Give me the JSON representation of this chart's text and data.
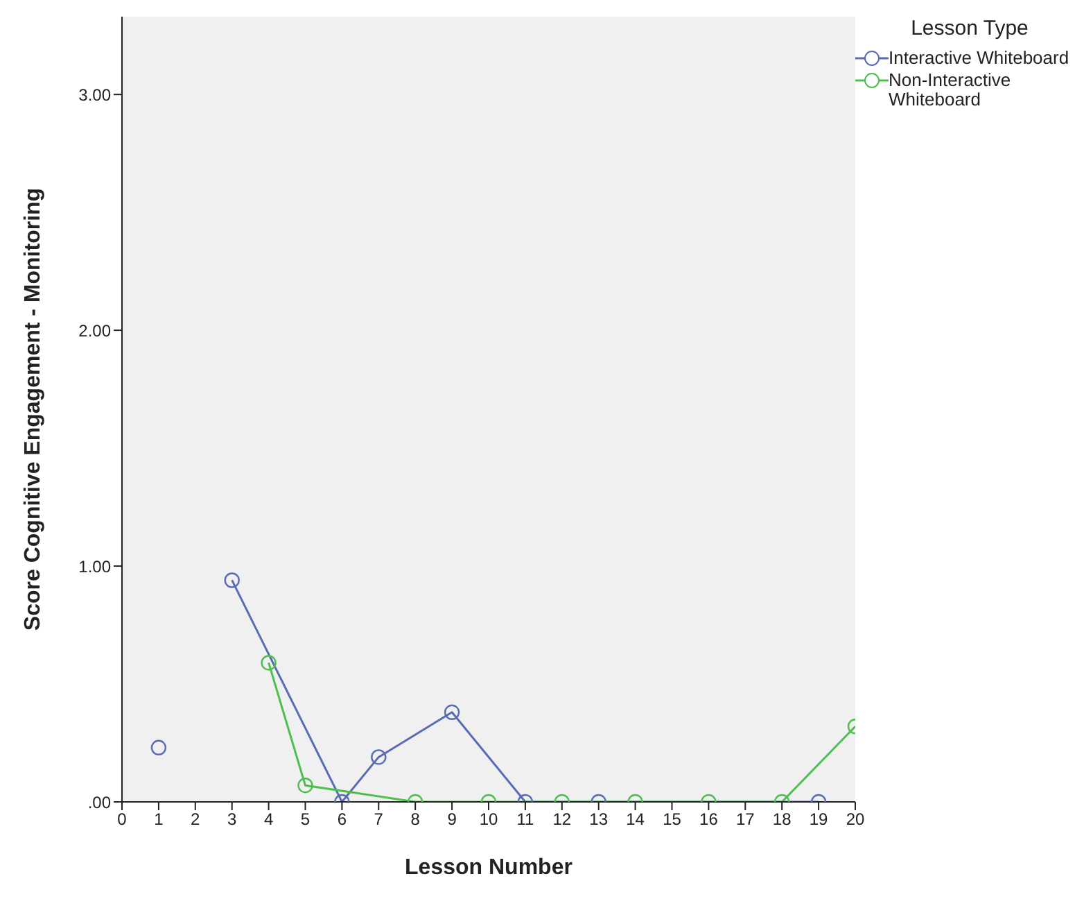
{
  "chart_data": {
    "type": "line",
    "xlabel": "Lesson Number",
    "ylabel": "Score Cognitive Engagement - Monitoring",
    "legend_title": "Lesson Type",
    "legend": "top right",
    "marker": "circle",
    "grid": false,
    "xlim": [
      0,
      20
    ],
    "xticks": [
      0,
      1,
      2,
      3,
      4,
      5,
      6,
      7,
      8,
      9,
      10,
      11,
      12,
      13,
      14,
      15,
      16,
      17,
      18,
      19,
      20
    ],
    "ylim": [
      0,
      3.33
    ],
    "yticks": [
      {
        "value": 0,
        "label": ".00"
      },
      {
        "value": 1,
        "label": "1.00"
      },
      {
        "value": 2,
        "label": "2.00"
      },
      {
        "value": 3,
        "label": "3.00"
      }
    ],
    "series": [
      {
        "name": "Interactive Whiteboard",
        "color": "#5a6bb5",
        "x": [
          1,
          2,
          3,
          6,
          7,
          9,
          11,
          13,
          19
        ],
        "values": [
          0.23,
          null,
          0.94,
          0,
          0.19,
          0.38,
          0,
          0,
          0
        ]
      },
      {
        "name": "Non-Interactive Whiteboard",
        "color": "#4cbf4c",
        "x": [
          4,
          5,
          8,
          10,
          12,
          14,
          16,
          18,
          20
        ],
        "values": [
          0.59,
          0.07,
          0,
          0,
          0,
          0,
          0,
          0,
          0.32
        ]
      }
    ]
  }
}
